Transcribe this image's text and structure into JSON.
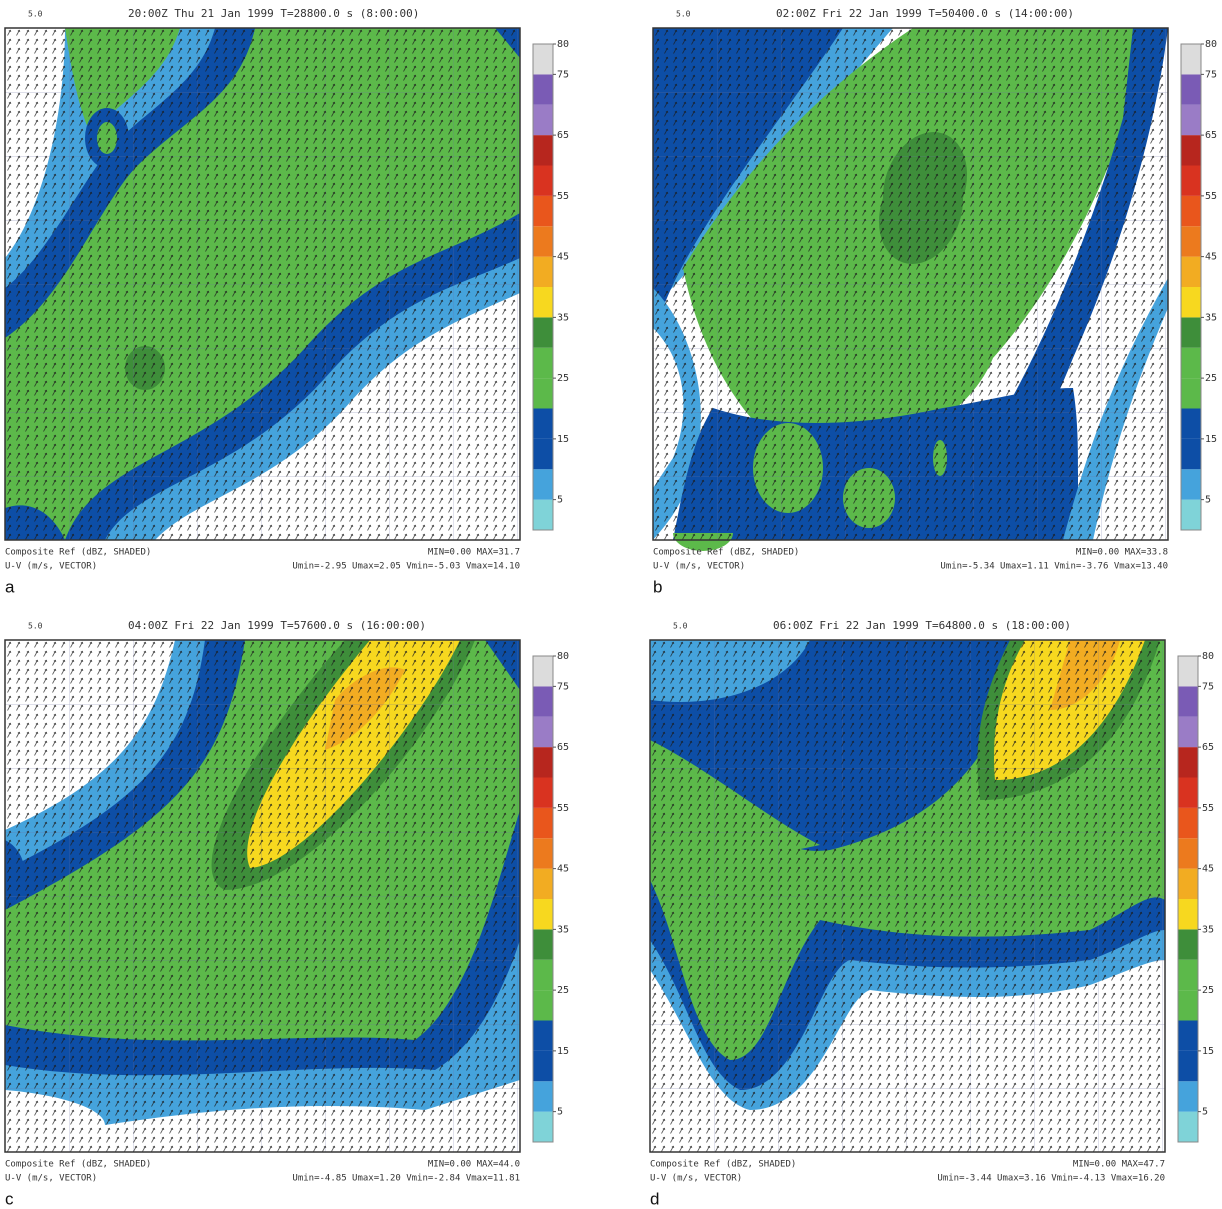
{
  "colorbar": {
    "ylim": [
      0,
      80
    ],
    "yticks": [
      5,
      15,
      25,
      35,
      45,
      55,
      65,
      75,
      80
    ],
    "colors": [
      "#7fd3d8",
      "#45a3dc",
      "#0d4ea6",
      "#0d4ea6",
      "#5cb94a",
      "#5cb94a",
      "#3e8e3a",
      "#f7d81f",
      "#f2ac22",
      "#ec7a1e",
      "#e9561c",
      "#d93320",
      "#b7261e",
      "#9a7cc6",
      "#7a5bb5",
      "#dcdcdc"
    ]
  },
  "panels": [
    {
      "letter": "a",
      "corner": "5.0",
      "header": "20:00Z Thu 21 Jan 1999 T=28800.0 s (8:00:00)",
      "field": "Composite Ref (dBZ, SHADED)",
      "minmax": "MIN=0.00 MAX=31.7",
      "vector": "U-V (m/s, VECTOR)",
      "uv": "Umin=-2.95 Umax=2.05 Vmin=-5.03 Vmax=14.10"
    },
    {
      "letter": "b",
      "corner": "5.0",
      "header": "02:00Z Fri 22 Jan 1999 T=50400.0 s (14:00:00)",
      "field": "Composite Ref (dBZ, SHADED)",
      "minmax": "MIN=0.00 MAX=33.8",
      "vector": "U-V (m/s, VECTOR)",
      "uv": "Umin=-5.34 Umax=1.11 Vmin=-3.76 Vmax=13.40"
    },
    {
      "letter": "c",
      "corner": "5.0",
      "header": "04:00Z Fri 22 Jan 1999 T=57600.0 s (16:00:00)",
      "field": "Composite Ref (dBZ, SHADED)",
      "minmax": "MIN=0.00 MAX=44.0",
      "vector": "U-V (m/s, VECTOR)",
      "uv": "Umin=-4.85 Umax=1.20 Vmin=-2.84 Vmax=11.81"
    },
    {
      "letter": "d",
      "corner": "5.0",
      "header": "06:00Z Fri 22 Jan 1999 T=64800.0 s (18:00:00)",
      "field": "Composite Ref (dBZ, SHADED)",
      "minmax": "MIN=0.00 MAX=47.7",
      "vector": "U-V (m/s, VECTOR)",
      "uv": "Umin=-3.44 Umax=3.16 Vmin=-4.13 Vmax=16.20"
    }
  ]
}
